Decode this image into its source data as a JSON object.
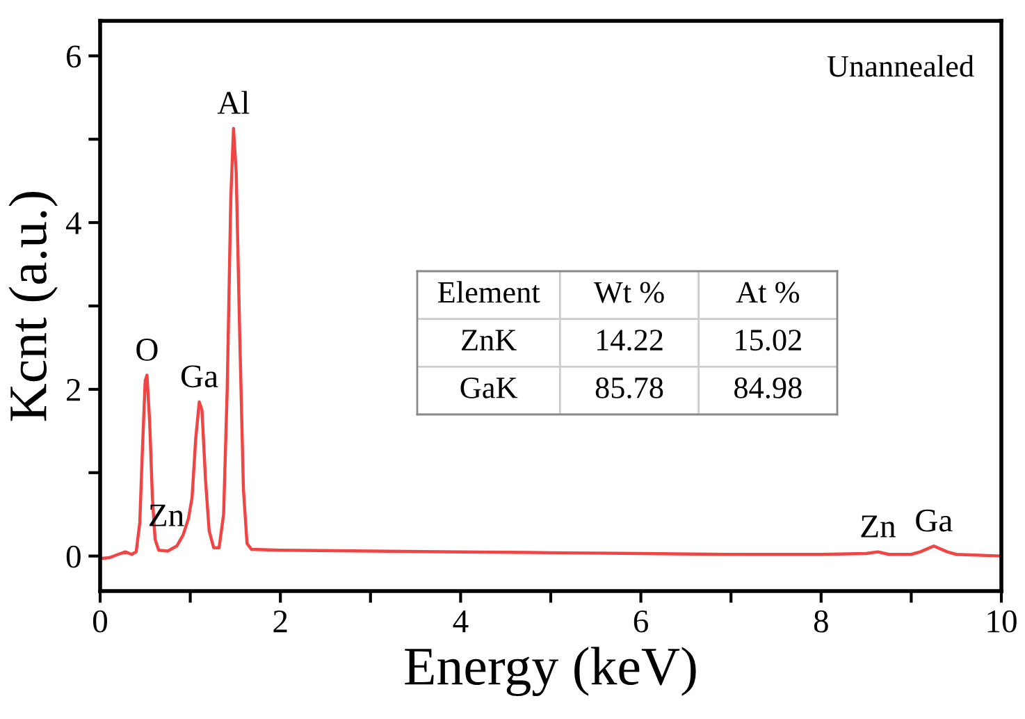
{
  "chart_data": [
    {
      "type": "line",
      "xlabel": "Energy (keV)",
      "ylabel": "Kcnt (a.u.)",
      "x": [
        0,
        0.1,
        0.2,
        0.28,
        0.35,
        0.4,
        0.44,
        0.47,
        0.5,
        0.52,
        0.55,
        0.58,
        0.61,
        0.65,
        0.75,
        0.85,
        0.92,
        0.98,
        1.02,
        1.06,
        1.1,
        1.13,
        1.17,
        1.21,
        1.26,
        1.32,
        1.37,
        1.41,
        1.45,
        1.48,
        1.51,
        1.55,
        1.59,
        1.63,
        1.68,
        2,
        3,
        4,
        5,
        6,
        7,
        8,
        8.5,
        8.63,
        8.75,
        9.0,
        9.1,
        9.25,
        9.4,
        9.5,
        10
      ],
      "series": [
        {
          "color": "#f04545",
          "values": [
            -0.03,
            -0.02,
            0.02,
            0.05,
            0.02,
            0.05,
            0.4,
            1.3,
            2.1,
            2.17,
            1.6,
            0.7,
            0.2,
            0.07,
            0.06,
            0.12,
            0.25,
            0.45,
            0.7,
            1.4,
            1.85,
            1.75,
            0.9,
            0.3,
            0.1,
            0.1,
            0.5,
            2.0,
            4.3,
            5.13,
            4.6,
            2.6,
            0.8,
            0.15,
            0.08,
            0.07,
            0.06,
            0.05,
            0.04,
            0.03,
            0.02,
            0.02,
            0.03,
            0.05,
            0.02,
            0.02,
            0.05,
            0.12,
            0.05,
            0.02,
            0.0
          ]
        }
      ],
      "xlim": [
        0,
        10
      ],
      "ylim": [
        -0.42,
        6.42
      ],
      "xticks": [
        0,
        {
          "value": 1,
          "label": null
        },
        2,
        {
          "value": 3,
          "label": null
        },
        4,
        {
          "value": 5,
          "label": null
        },
        6,
        {
          "value": 7,
          "label": null
        },
        8,
        {
          "value": 9,
          "label": null
        },
        10
      ],
      "yticks": [
        0,
        {
          "value": 1,
          "label": null
        },
        2,
        {
          "value": 3,
          "label": null
        },
        4,
        {
          "value": 5,
          "label": null
        },
        6
      ],
      "grid": false,
      "annotations": [
        "Unannealed",
        {
          "text": "O",
          "x": 0.52,
          "y": 2.17
        },
        {
          "text": "Zn",
          "x": 1.0,
          "y": 0.5
        },
        {
          "text": "Ga",
          "x": 1.1,
          "y": 1.85
        },
        {
          "text": "Al",
          "x": 1.48,
          "y": 5.13
        },
        {
          "text": "Zn",
          "x": 8.63,
          "y": 0.05
        },
        {
          "text": "Ga",
          "x": 9.25,
          "y": 0.12
        }
      ]
    },
    {
      "type": "other",
      "annotations": [
        "Element",
        "Wt %",
        "At %",
        "ZnK",
        "14.22",
        "15.02",
        "GaK",
        "85.78",
        "84.98"
      ]
    }
  ]
}
